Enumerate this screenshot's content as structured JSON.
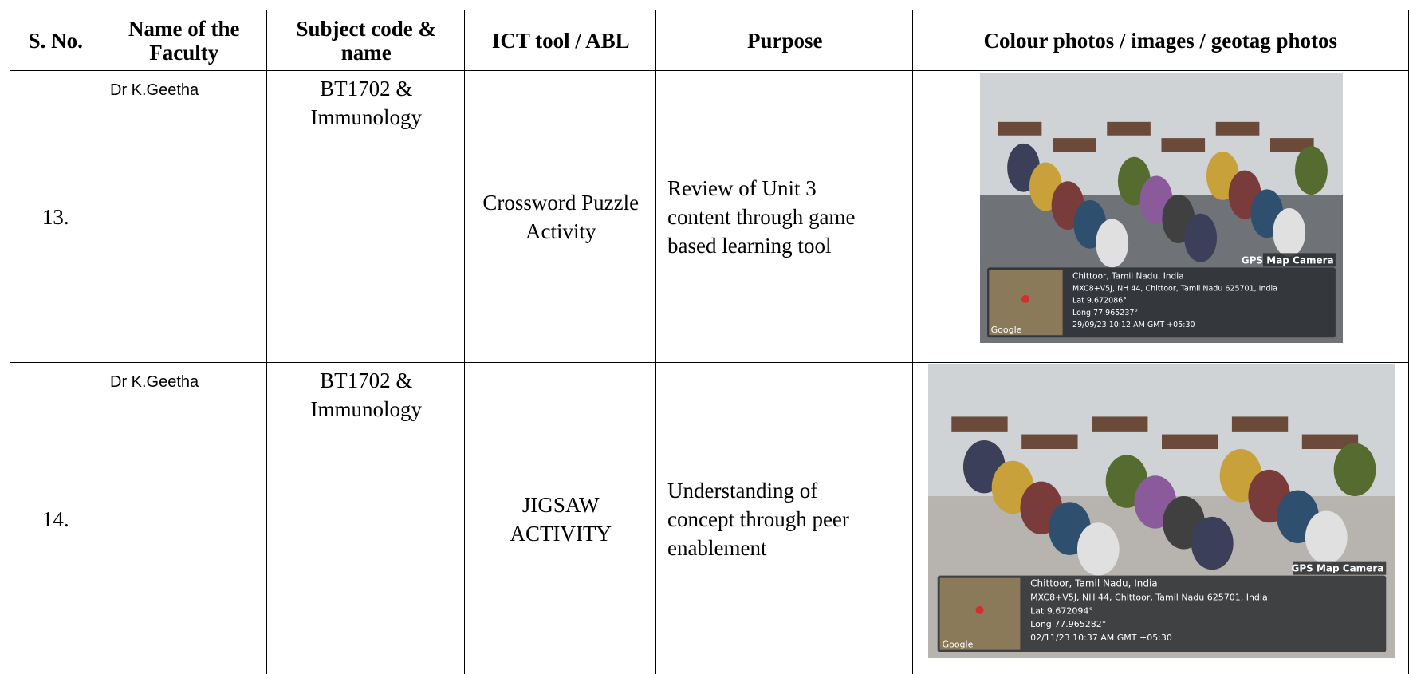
{
  "table": {
    "header": [
      "S. No.",
      "Name of the Faculty",
      "Subject code & name",
      "ICT tool / ABL",
      "Purpose",
      "Colour photos / images / geotag photos"
    ],
    "rows": [
      {
        "s_no": "13.",
        "faculty": "Dr K.Geetha",
        "subject": "BT1702 & Immunology",
        "tool": "Crossword Puzzle Activity",
        "purpose": "Review of Unit 3 content through game based learning tool",
        "photo": {
          "badge": "GPS Map Camera",
          "map_label": "Google",
          "lines": [
            "Chittoor, Tamil Nadu, India",
            "MXC8+V5J, NH 44, Chittoor, Tamil Nadu 625701, India",
            "Lat 9.672086°",
            "Long 77.965237°",
            "29/09/23 10:12 AM GMT +05:30"
          ]
        }
      },
      {
        "s_no": "14.",
        "faculty": "Dr K.Geetha",
        "subject": "BT1702 & Immunology",
        "tool": "JIGSAW ACTIVITY",
        "purpose": "Understanding of concept through peer enablement",
        "photo": {
          "badge": "GPS Map Camera",
          "map_label": "Google",
          "lines": [
            "Chittoor, Tamil Nadu, India",
            "MXC8+V5J, NH 44, Chittoor, Tamil Nadu 625701, India",
            "Lat 9.672094°",
            "Long 77.965282°",
            "02/11/23 10:37 AM GMT +05:30"
          ]
        }
      }
    ]
  }
}
